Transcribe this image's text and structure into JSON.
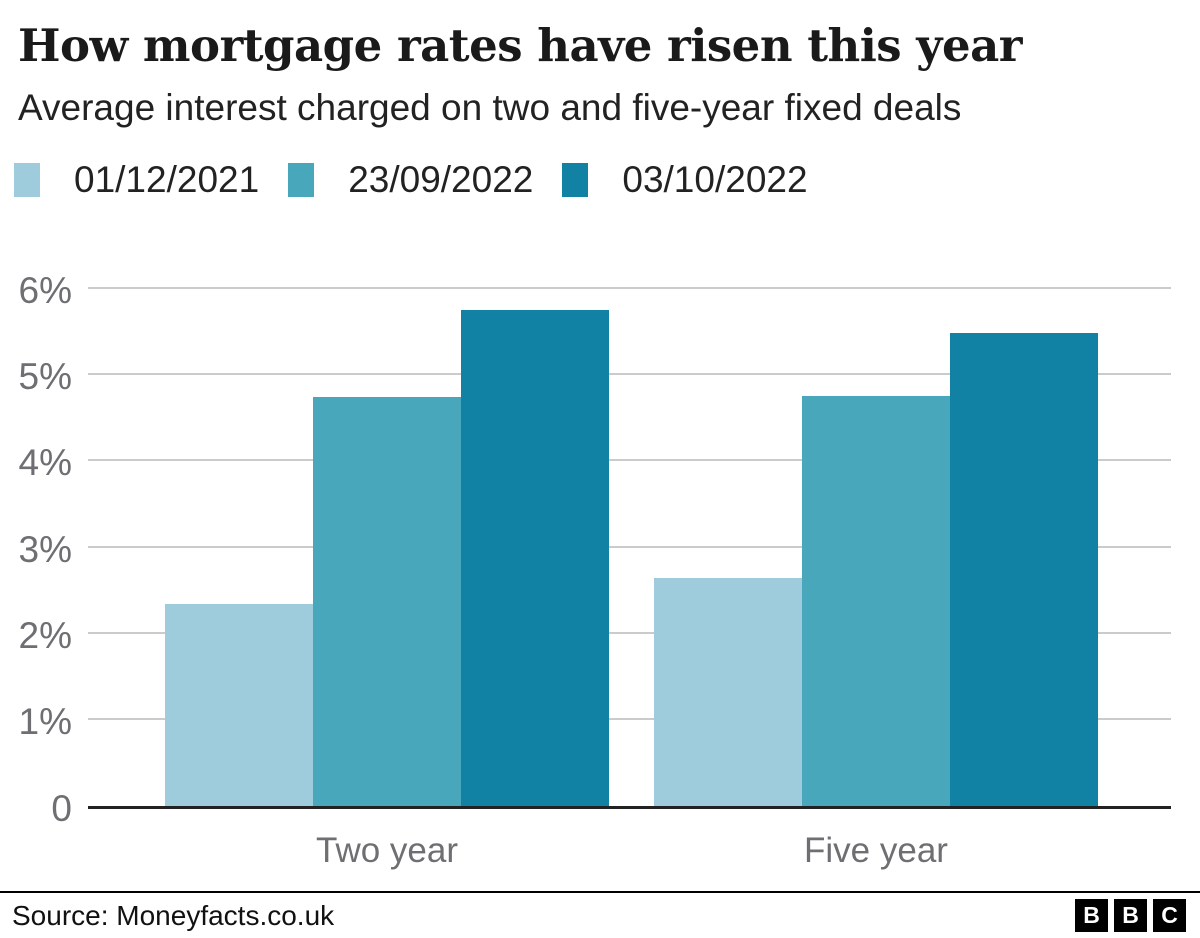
{
  "header": {
    "title": "How mortgage rates have risen this year",
    "subtitle": "Average interest charged on two and five-year fixed deals"
  },
  "footer": {
    "source": "Source: Moneyfacts.co.uk",
    "logo_letters": [
      "B",
      "B",
      "C"
    ]
  },
  "colors": {
    "series_light": "#9fccdd",
    "series_medium": "#49a7bb",
    "series_dark": "#1282a4",
    "gridline": "#cbcbcb",
    "axis_line": "#222222",
    "axis_label_gray": "#6e6e73",
    "text_dark": "#1a1a1a"
  },
  "chart_data": {
    "type": "bar",
    "title": "How mortgage rates have risen this year",
    "subtitle": "Average interest charged on two and five-year fixed deals",
    "categories": [
      "Two year",
      "Five year"
    ],
    "series": [
      {
        "name": "01/12/2021",
        "color": "#9fccdd",
        "values": [
          2.34,
          2.64
        ]
      },
      {
        "name": "23/09/2022",
        "color": "#49a7bb",
        "values": [
          4.74,
          4.75
        ]
      },
      {
        "name": "03/10/2022",
        "color": "#1282a4",
        "values": [
          5.75,
          5.48
        ]
      }
    ],
    "xlabel": "",
    "ylabel": "",
    "ylim": [
      0,
      6
    ],
    "yticks": [
      {
        "label": "6%",
        "value": 6
      },
      {
        "label": "5%",
        "value": 5
      },
      {
        "label": "4%",
        "value": 4
      },
      {
        "label": "3%",
        "value": 3
      },
      {
        "label": "2%",
        "value": 2
      },
      {
        "label": "1%",
        "value": 1
      },
      {
        "label": "0",
        "value": 0
      }
    ],
    "grid": true,
    "legend_position": "top",
    "source": "Source: Moneyfacts.co.uk"
  }
}
